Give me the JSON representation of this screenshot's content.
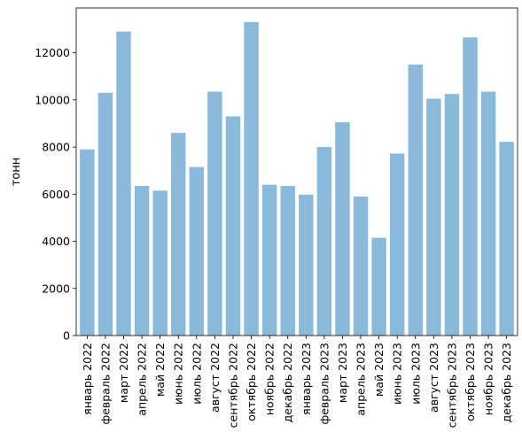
{
  "chart_data": {
    "type": "bar",
    "title": "",
    "xlabel": "",
    "ylabel": "тонн",
    "ylim": [
      0,
      13900
    ],
    "yticks": [
      0,
      2000,
      4000,
      6000,
      8000,
      10000,
      12000
    ],
    "grid": false,
    "bar_color": "#8bb9da",
    "categories": [
      "январь 2022",
      "февраль 2022",
      "март 2022",
      "апрель 2022",
      "май 2022",
      "июнь 2022",
      "июль 2022",
      "август 2022",
      "сентябрь 2022",
      "октябрь 2022",
      "ноябрь 2022",
      "декабрь 2022",
      "январь 2023",
      "февраль 2023",
      "март 2023",
      "апрель 2023",
      "май 2023",
      "июнь 2023",
      "июль 2023",
      "август 2023",
      "сентябрь 2023",
      "октябрь 2023",
      "ноябрь 2023",
      "декабрь 2023"
    ],
    "values": [
      7900,
      10300,
      12900,
      6350,
      6150,
      8600,
      7150,
      10350,
      9300,
      13300,
      6400,
      6350,
      5980,
      8000,
      9050,
      5900,
      4150,
      7720,
      11500,
      10050,
      10250,
      12650,
      10350,
      8220
    ]
  }
}
